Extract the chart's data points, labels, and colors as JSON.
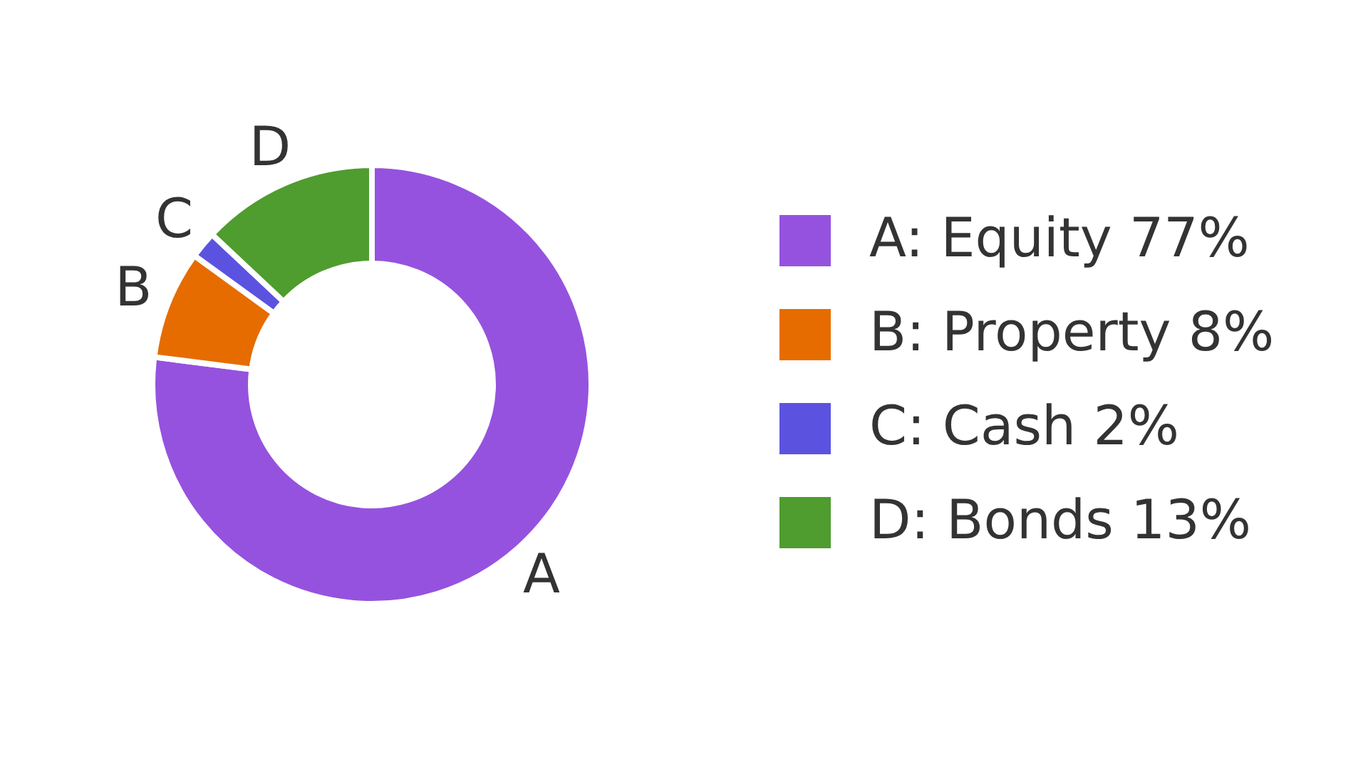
{
  "chart_data": {
    "type": "donut",
    "categories": [
      "A: Equity 77%",
      "B: Property 8%",
      "C: Cash 2%",
      "D: Bonds 13%"
    ],
    "values": [
      77,
      8,
      2,
      13
    ],
    "colors": [
      "#9552df",
      "#e66c00",
      "#5b53e0",
      "#4f9c2f"
    ],
    "annotations": [
      {
        "text": "A",
        "x": "A: Equity 77%"
      },
      {
        "text": "B",
        "x": "B: Property 8%"
      },
      {
        "text": "C",
        "x": "C: Cash 2%"
      },
      {
        "text": "D",
        "x": "D: Bonds 13%"
      }
    ],
    "legend": "right"
  }
}
